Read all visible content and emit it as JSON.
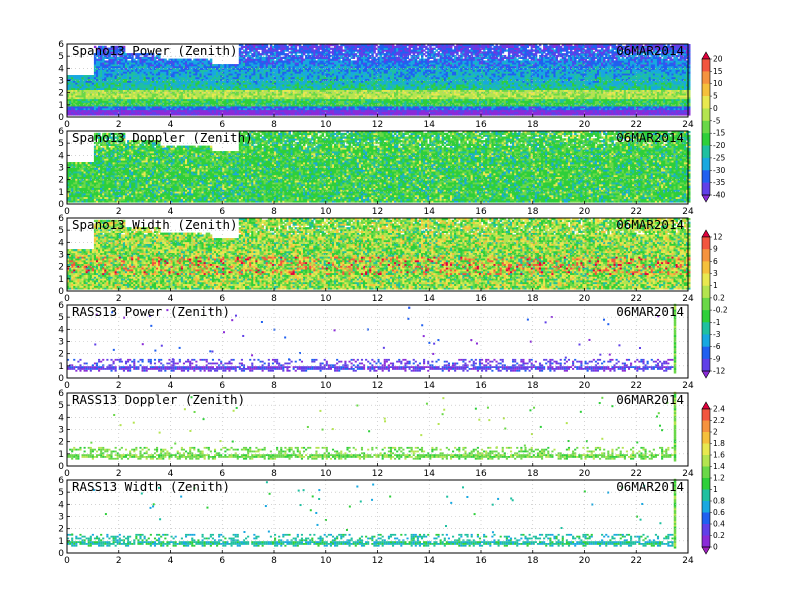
{
  "chart_data": [
    {
      "type": "heatmap",
      "title": "Spano13 Power (Zenith)",
      "date": "06MAR2014",
      "x_ticks": [
        0,
        2,
        4,
        6,
        8,
        10,
        12,
        14,
        16,
        18,
        20,
        22,
        24
      ],
      "y_ticks": [
        0,
        1,
        2,
        3,
        4,
        5,
        6
      ],
      "xlim": [
        0,
        24
      ],
      "ylim": [
        0,
        6
      ],
      "colorbar": "a",
      "field": "power",
      "data_coverage": [
        {
          "x": [
            0.0,
            1.0
          ],
          "ymax": 3.3
        },
        {
          "x": [
            1.0,
            2.2
          ],
          "ymax": 5.8
        },
        {
          "x": [
            2.2,
            3.6
          ],
          "ymax": 5.2
        },
        {
          "x": [
            3.6,
            5.6
          ],
          "ymax": 4.7
        },
        {
          "x": [
            5.6,
            6.6
          ],
          "ymax": 4.2
        },
        {
          "x": [
            6.6,
            24.0
          ],
          "ymax": 6.0
        }
      ],
      "features": [
        {
          "label": "strong band",
          "x": [
            0.0,
            24.0
          ],
          "y": [
            1.4,
            2.1
          ],
          "level": "0 to 5"
        },
        {
          "label": "weak floor",
          "x": [
            0.0,
            24.0
          ],
          "y": [
            0.2,
            0.55
          ],
          "level": "-35 to -40"
        }
      ]
    },
    {
      "type": "heatmap",
      "title": "Spano13 Doppler (Zenith)",
      "date": "06MAR2014",
      "x_ticks": [
        0,
        2,
        4,
        6,
        8,
        10,
        12,
        14,
        16,
        18,
        20,
        22,
        24
      ],
      "y_ticks": [
        0,
        1,
        2,
        3,
        4,
        5,
        6
      ],
      "xlim": [
        0,
        24
      ],
      "ylim": [
        0,
        6
      ],
      "colorbar": "a",
      "field": "doppler",
      "data_coverage": [
        {
          "x": [
            0.0,
            1.0
          ],
          "ymax": 3.3
        },
        {
          "x": [
            1.0,
            2.2
          ],
          "ymax": 5.8
        },
        {
          "x": [
            2.2,
            3.6
          ],
          "ymax": 5.2
        },
        {
          "x": [
            3.6,
            5.6
          ],
          "ymax": 4.7
        },
        {
          "x": [
            5.6,
            6.6
          ],
          "ymax": 4.2
        },
        {
          "x": [
            6.6,
            24.0
          ],
          "ymax": 6.0
        }
      ],
      "features": [
        {
          "label": "mostly near zero",
          "x": [
            0.0,
            24.0
          ],
          "y": [
            0.0,
            6.0
          ],
          "level": "-5 to -15"
        }
      ]
    },
    {
      "type": "heatmap",
      "title": "Spano13 Width (Zenith)",
      "date": "06MAR2014",
      "x_ticks": [
        0,
        2,
        4,
        6,
        8,
        10,
        12,
        14,
        16,
        18,
        20,
        22,
        24
      ],
      "y_ticks": [
        0,
        1,
        2,
        3,
        4,
        5,
        6
      ],
      "xlim": [
        0,
        24
      ],
      "ylim": [
        0,
        6
      ],
      "colorbar": "b",
      "field": "width",
      "data_coverage": [
        {
          "x": [
            0.0,
            1.0
          ],
          "ymax": 3.3
        },
        {
          "x": [
            1.0,
            2.2
          ],
          "ymax": 5.8
        },
        {
          "x": [
            2.2,
            3.6
          ],
          "ymax": 5.2
        },
        {
          "x": [
            3.6,
            5.6
          ],
          "ymax": 4.7
        },
        {
          "x": [
            5.6,
            6.6
          ],
          "ymax": 4.2
        },
        {
          "x": [
            6.6,
            24.0
          ],
          "ymax": 6.0
        }
      ],
      "features": [
        {
          "label": "high width patches",
          "x": [
            0.0,
            24.0
          ],
          "y": [
            1.2,
            3.0
          ],
          "level": "8 to 12"
        }
      ]
    },
    {
      "type": "heatmap",
      "title": "RASS13 Power (Zenith)",
      "date": "06MAR2014",
      "x_ticks": [
        0,
        2,
        4,
        6,
        8,
        10,
        12,
        14,
        16,
        18,
        20,
        22,
        24
      ],
      "y_ticks": [
        0,
        1,
        2,
        3,
        4,
        5,
        6
      ],
      "xlim": [
        0,
        24
      ],
      "ylim": [
        0,
        6
      ],
      "colorbar": "b",
      "field": "rass_power",
      "features": [
        {
          "label": "band",
          "x": [
            0.0,
            23.4
          ],
          "y": [
            0.6,
            1.4
          ],
          "level": "-9 to -12"
        },
        {
          "label": "vertical streak",
          "x": [
            23.4,
            23.6
          ],
          "y": [
            0.4,
            6.0
          ],
          "level": "-0.2 to 1"
        }
      ]
    },
    {
      "type": "heatmap",
      "title": "RASS13 Doppler (Zenith)",
      "date": "06MAR2014",
      "x_ticks": [
        0,
        2,
        4,
        6,
        8,
        10,
        12,
        14,
        16,
        18,
        20,
        22,
        24
      ],
      "y_ticks": [
        0,
        1,
        2,
        3,
        4,
        5,
        6
      ],
      "xlim": [
        0,
        24
      ],
      "ylim": [
        0,
        6
      ],
      "colorbar": "c",
      "field": "rass_doppler",
      "features": [
        {
          "label": "band",
          "x": [
            0.0,
            23.4
          ],
          "y": [
            0.5,
            1.5
          ],
          "level": "1 to 1.6"
        },
        {
          "label": "vertical streak",
          "x": [
            23.4,
            23.6
          ],
          "y": [
            0.4,
            6.0
          ],
          "level": "1.2 to 1.6"
        }
      ]
    },
    {
      "type": "heatmap",
      "title": "RASS13 Width (Zenith)",
      "date": "06MAR2014",
      "x_ticks": [
        0,
        2,
        4,
        6,
        8,
        10,
        12,
        14,
        16,
        18,
        20,
        22,
        24
      ],
      "y_ticks": [
        0,
        1,
        2,
        3,
        4,
        5,
        6
      ],
      "xlim": [
        0,
        24
      ],
      "ylim": [
        0,
        6
      ],
      "colorbar": "c",
      "field": "rass_width",
      "features": [
        {
          "label": "band",
          "x": [
            0.0,
            23.4
          ],
          "y": [
            0.5,
            1.5
          ],
          "level": "0.8 to 1.2"
        },
        {
          "label": "vertical streak",
          "x": [
            23.4,
            23.6
          ],
          "y": [
            0.4,
            6.0
          ],
          "level": "1 to 1.4"
        }
      ]
    }
  ],
  "colorbars": {
    "a": {
      "labels": [
        "20",
        "15",
        "10",
        "5",
        "0",
        "-5",
        "-15",
        "-20",
        "-25",
        "-30",
        "-35",
        "-40"
      ],
      "colors": [
        "#e0003c",
        "#f2553f",
        "#f5933f",
        "#f5c03c",
        "#e8e850",
        "#b4e450",
        "#6ad848",
        "#2ecf3a",
        "#1fc0a0",
        "#18a8e0",
        "#2060f0",
        "#6040e8",
        "#8a2bd8"
      ]
    },
    "b": {
      "labels": [
        "12",
        "9",
        "6",
        "3",
        "1",
        "0.2",
        "-0.2",
        "-1",
        "-3",
        "-6",
        "-9",
        "-12"
      ],
      "colors": [
        "#e0003c",
        "#f2553f",
        "#f5933f",
        "#f5c03c",
        "#e8e850",
        "#b4e450",
        "#6ad848",
        "#2ecf3a",
        "#1fc0a0",
        "#18a8e0",
        "#2060f0",
        "#6040e8",
        "#8a2bd8"
      ]
    },
    "c": {
      "labels": [
        "2.4",
        "2.2",
        "2",
        "1.8",
        "1.6",
        "1.4",
        "1.2",
        "1",
        "0.8",
        "0.6",
        "0.4",
        "0.2",
        "0"
      ],
      "colors": [
        "#e0003c",
        "#f2553f",
        "#f5933f",
        "#f5c03c",
        "#e8e850",
        "#b4e450",
        "#6ad848",
        "#2ecf3a",
        "#1fc0a0",
        "#18a8e0",
        "#2060f0",
        "#6040e8",
        "#8a2bd8",
        "#a020c0"
      ]
    }
  }
}
